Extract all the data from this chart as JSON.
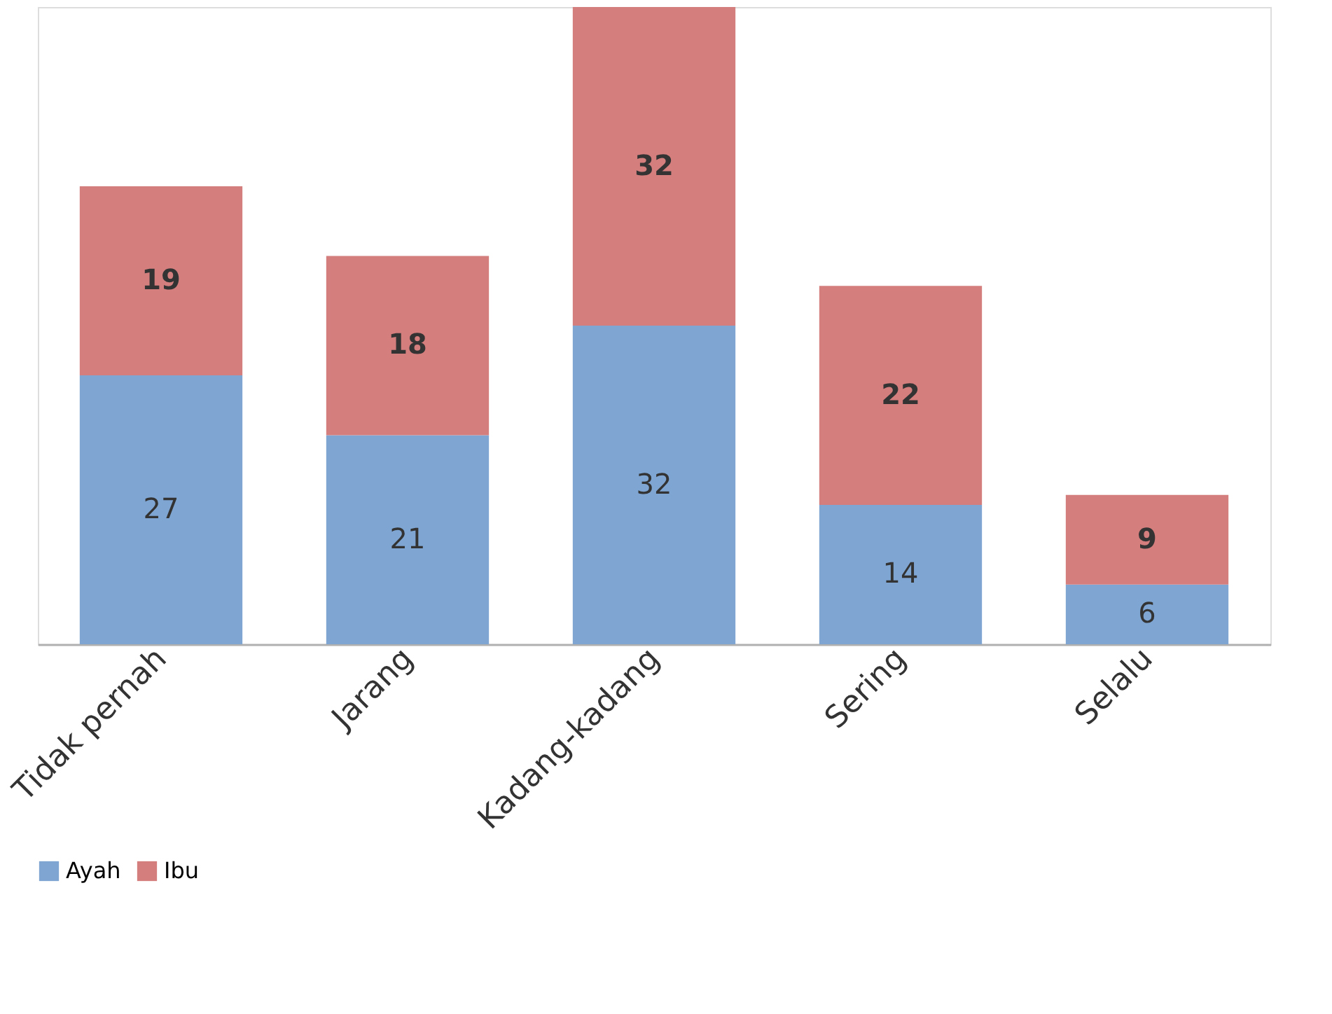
{
  "chart_data": {
    "type": "bar",
    "stacked": true,
    "data_labels": true,
    "legend": "bottom",
    "grid": false,
    "categories": [
      "Tidak pernah",
      "Jarang",
      "Kadang-kadang",
      "Sering",
      "Selalu"
    ],
    "series": [
      {
        "name": "Ayah",
        "color": "#7fa6d3",
        "values": [
          27,
          21,
          32,
          14,
          6
        ]
      },
      {
        "name": "Ibu",
        "color": "#d47e7e",
        "values": [
          19,
          18,
          32,
          22,
          9
        ]
      }
    ]
  }
}
